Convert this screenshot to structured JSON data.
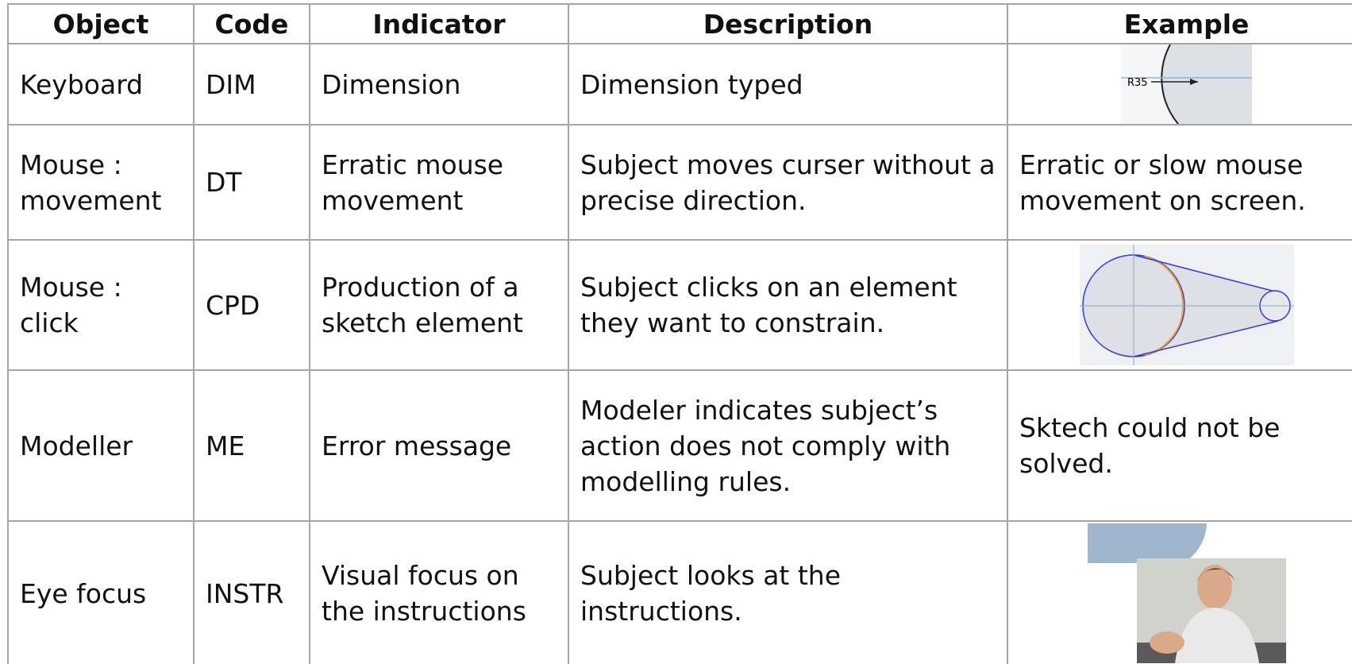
{
  "table": {
    "header": [
      "Object",
      "Code",
      "Indicator",
      "Description",
      "Example"
    ],
    "rows": [
      {
        "object": "Keyboard",
        "code": "DIM",
        "indicator": "Dimension",
        "description": "Dimension typed",
        "image_label": "R35"
      },
      {
        "object": "Mouse : movement",
        "code": "DT",
        "indicator": "Erratic mouse movement",
        "description": "Subject moves curser without a precise direction.",
        "example": "Erratic or slow mouse movement on screen."
      },
      {
        "object": "Mouse : click",
        "code": "CPD",
        "indicator": "Production of a sketch element",
        "description": "Subject clicks on an element they want to constrain."
      },
      {
        "object": "Modeller",
        "code": "ME",
        "indicator": "Error message",
        "description": "Modeler indicates subject’s action does not comply with modelling rules.",
        "example": "Sktech could not be solved."
      },
      {
        "object": "Eye focus",
        "code": "INSTR",
        "indicator": "Visual focus on the instructions",
        "description": "Subject looks at the instructions."
      }
    ]
  }
}
